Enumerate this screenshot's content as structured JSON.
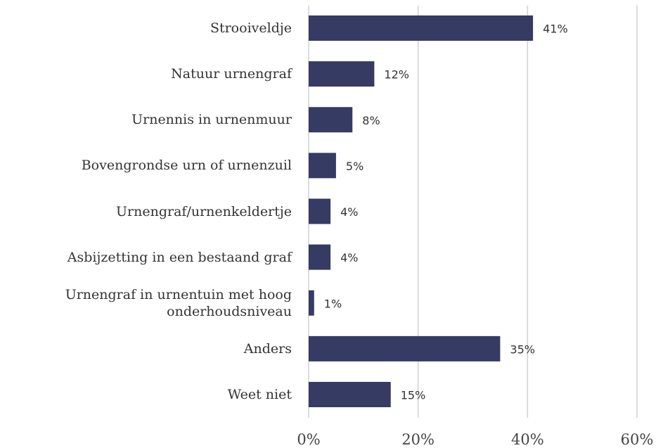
{
  "chart_data": {
    "type": "bar",
    "orientation": "horizontal",
    "categories": [
      "Strooiveldje",
      "Natuur urnengraf",
      "Urnennis in urnenmuur",
      "Bovengrondse urn of urnenzuil",
      "Urnengraf/urnenkeldertje",
      "Asbijzetting in een bestaand graf",
      "Urnengraf in urnentuin met hoog onderhoudsniveau",
      "Anders",
      "Weet niet"
    ],
    "values": [
      41,
      12,
      8,
      5,
      4,
      4,
      1,
      35,
      15
    ],
    "value_labels": [
      "41%",
      "12%",
      "8%",
      "5%",
      "4%",
      "4%",
      "1%",
      "35%",
      "15%"
    ],
    "color": "#363b64",
    "xlim": [
      0,
      60
    ],
    "xticks": [
      {
        "value": 0,
        "label": "0%"
      },
      {
        "value": 20,
        "label": "20%"
      },
      {
        "value": 40,
        "label": "40%"
      },
      {
        "value": 60,
        "label": "60%"
      }
    ],
    "grid": true
  }
}
